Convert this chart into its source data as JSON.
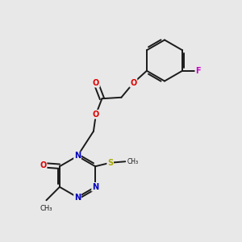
{
  "background_color": "#e8e8e8",
  "bond_color": "#1a1a1a",
  "atom_colors": {
    "O": "#dd0000",
    "N": "#0000bb",
    "S": "#aaaa00",
    "F": "#cc00cc",
    "C": "#1a1a1a"
  },
  "figsize": [
    3.0,
    3.0
  ],
  "dpi": 100
}
